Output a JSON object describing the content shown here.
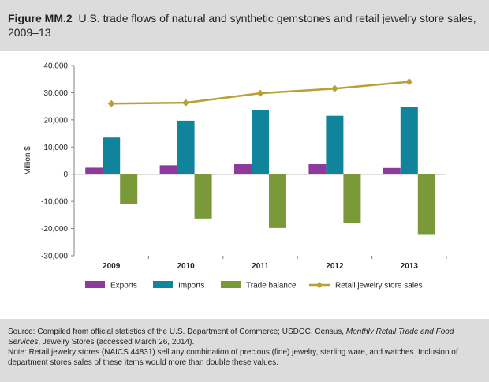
{
  "figure": {
    "label": "Figure MM.2",
    "title": "U.S. trade flows of natural and synthetic gemstones and retail jewelry store sales, 2009–13"
  },
  "source": {
    "prefix": "Source: Compiled from official statistics of the U.S. Department of Commerce; USDOC, Census, ",
    "pub_title": "Monthly Retail Trade and Food Services",
    "suffix": ", Jewelry Stores (accessed March 26, 2014).",
    "note": "Note: Retail jewelry stores (NAICS 44831) sell any combination of precious (fine) jewelry, sterling ware, and watches. Inclusion of department stores sales of these items would more than double these values."
  },
  "chart_data": {
    "type": "bar",
    "categories": [
      "2009",
      "2010",
      "2011",
      "2012",
      "2013"
    ],
    "ylabel": "Million $",
    "ylim": [
      -30000,
      40000
    ],
    "yticks": [
      -30000,
      -20000,
      -10000,
      0,
      10000,
      20000,
      30000,
      40000
    ],
    "ytick_labels": [
      "-30,000",
      "-20,000",
      "-10,000",
      "0",
      "10,000",
      "20,000",
      "30,000",
      "40,000"
    ],
    "grid": false,
    "legend_position": "bottom",
    "series": [
      {
        "name": "Exports",
        "kind": "bar",
        "color": "#8e3a9d",
        "values": [
          2400,
          3300,
          3700,
          3700,
          2300
        ]
      },
      {
        "name": "Imports",
        "kind": "bar",
        "color": "#10849a",
        "values": [
          13500,
          19700,
          23500,
          21500,
          24700
        ]
      },
      {
        "name": "Trade balance",
        "kind": "bar",
        "color": "#7a9a3a",
        "values": [
          -11100,
          -16300,
          -19800,
          -17800,
          -22300
        ]
      },
      {
        "name": "Retail jewelry store sales",
        "kind": "line",
        "color": "#b8a034",
        "values": [
          26000,
          26300,
          29800,
          31500,
          34000
        ]
      }
    ]
  }
}
